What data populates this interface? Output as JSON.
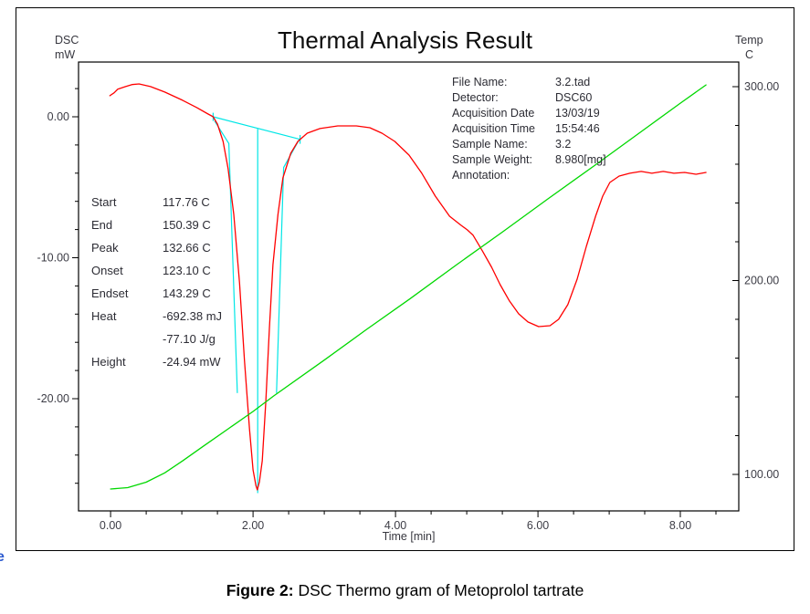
{
  "chart": {
    "title": "Thermal Analysis Result",
    "left_axis_unit_line1": "DSC",
    "left_axis_unit_line2": "mW",
    "right_axis_unit_line1": "Temp",
    "right_axis_unit_line2": "C",
    "x_axis_label": "Time  [min]"
  },
  "info": {
    "rows": [
      {
        "label": "File Name:",
        "value": "3.2.tad"
      },
      {
        "label": "Detector:",
        "value": "DSC60"
      },
      {
        "label": "Acquisition Date",
        "value": "13/03/19"
      },
      {
        "label": "Acquisition Time",
        "value": "15:54:46"
      },
      {
        "label": "Sample Name:",
        "value": "3.2"
      },
      {
        "label": "Sample Weight:",
        "value": "8.980[mg]"
      },
      {
        "label": "Annotation:",
        "value": ""
      }
    ]
  },
  "results": {
    "rows": [
      {
        "label": "Start",
        "value": "117.76 C"
      },
      {
        "label": "End",
        "value": "150.39 C"
      },
      {
        "label": "Peak",
        "value": "132.66 C"
      },
      {
        "label": "Onset",
        "value": "123.10 C"
      },
      {
        "label": "Endset",
        "value": "143.29 C"
      },
      {
        "label": "Heat",
        "value": "-692.38 mJ"
      },
      {
        "label": "",
        "value": "-77.10 J/g"
      },
      {
        "label": "Height",
        "value": "-24.94 mW"
      }
    ]
  },
  "caption": {
    "prefix": "Figure 2:",
    "text": " DSC Thermo gram of Metoprolol tartrate"
  },
  "stray_char": "e",
  "chart_data": {
    "type": "line",
    "title": "Thermal Analysis Result",
    "xlabel": "Time [min]",
    "legend_position": "none",
    "grid": false,
    "x_axis": {
      "lim": [
        -0.45,
        8.82
      ],
      "major_ticks": [
        0,
        2,
        4,
        6,
        8
      ],
      "major_labels": [
        "0.00",
        "2.00",
        "4.00",
        "6.00",
        "8.00"
      ],
      "minor_ticks": [
        0.5,
        1,
        1.5,
        2.5,
        3,
        3.5,
        4.5,
        5,
        5.5,
        6.5,
        7,
        7.5,
        8.5
      ]
    },
    "y_left": {
      "label": "DSC mW",
      "lim": [
        -27.96,
        3.88
      ],
      "major_ticks": [
        0,
        -10,
        -20
      ],
      "major_labels": [
        "0.00",
        "-10.00",
        "-20.00"
      ],
      "minor_ticks": [
        2,
        -2,
        -4,
        -6,
        -8,
        -12,
        -14,
        -16,
        -18,
        -22,
        -24,
        -26
      ]
    },
    "y_right": {
      "label": "Temp C",
      "lim": [
        81.2,
        312.7
      ],
      "major_ticks": [
        300,
        200,
        100
      ],
      "major_labels": [
        "300.00",
        "200.00",
        "100.00"
      ],
      "minor_ticks": [
        280,
        260,
        240,
        220,
        180,
        160,
        140,
        120
      ]
    },
    "series": [
      {
        "name": "dsc-heat-flow-curve",
        "axis": "left",
        "color": "#ff0000",
        "points": [
          [
            -0.01,
            1.49
          ],
          [
            0.05,
            1.7
          ],
          [
            0.1,
            1.95
          ],
          [
            0.21,
            2.14
          ],
          [
            0.3,
            2.28
          ],
          [
            0.4,
            2.33
          ],
          [
            0.56,
            2.14
          ],
          [
            0.76,
            1.75
          ],
          [
            1.01,
            1.17
          ],
          [
            1.21,
            0.65
          ],
          [
            1.37,
            0.19
          ],
          [
            1.44,
            0.0
          ],
          [
            1.5,
            -0.52
          ],
          [
            1.58,
            -1.75
          ],
          [
            1.65,
            -3.69
          ],
          [
            1.73,
            -6.93
          ],
          [
            1.81,
            -11.78
          ],
          [
            1.88,
            -17.28
          ],
          [
            1.95,
            -22.14
          ],
          [
            2.0,
            -25.05
          ],
          [
            2.04,
            -26.15
          ],
          [
            2.06,
            -26.47
          ],
          [
            2.09,
            -25.89
          ],
          [
            2.13,
            -24.4
          ],
          [
            2.18,
            -20.19
          ],
          [
            2.23,
            -15.02
          ],
          [
            2.28,
            -10.49
          ],
          [
            2.35,
            -6.93
          ],
          [
            2.42,
            -4.34
          ],
          [
            2.53,
            -2.59
          ],
          [
            2.63,
            -1.75
          ],
          [
            2.76,
            -1.17
          ],
          [
            2.94,
            -0.84
          ],
          [
            3.19,
            -0.65
          ],
          [
            3.45,
            -0.65
          ],
          [
            3.64,
            -0.78
          ],
          [
            3.81,
            -1.17
          ],
          [
            3.99,
            -1.75
          ],
          [
            4.19,
            -2.72
          ],
          [
            4.37,
            -4.01
          ],
          [
            4.56,
            -5.63
          ],
          [
            4.76,
            -7.06
          ],
          [
            4.92,
            -7.7
          ],
          [
            5.01,
            -8.03
          ],
          [
            5.09,
            -8.41
          ],
          [
            5.22,
            -9.51
          ],
          [
            5.35,
            -10.68
          ],
          [
            5.47,
            -11.91
          ],
          [
            5.6,
            -13.07
          ],
          [
            5.73,
            -13.98
          ],
          [
            5.86,
            -14.56
          ],
          [
            6.01,
            -14.89
          ],
          [
            6.17,
            -14.82
          ],
          [
            6.29,
            -14.37
          ],
          [
            6.42,
            -13.33
          ],
          [
            6.55,
            -11.52
          ],
          [
            6.68,
            -9.19
          ],
          [
            6.81,
            -7.06
          ],
          [
            6.91,
            -5.63
          ],
          [
            7.01,
            -4.66
          ],
          [
            7.14,
            -4.21
          ],
          [
            7.29,
            -4.01
          ],
          [
            7.45,
            -3.88
          ],
          [
            7.6,
            -4.01
          ],
          [
            7.76,
            -3.88
          ],
          [
            7.91,
            -4.01
          ],
          [
            8.06,
            -3.95
          ],
          [
            8.22,
            -4.08
          ],
          [
            8.36,
            -3.95
          ]
        ]
      },
      {
        "name": "temperature-ramp-curve",
        "axis": "right",
        "color": "#00d800",
        "points": [
          [
            0.0,
            92.5
          ],
          [
            0.24,
            93.2
          ],
          [
            0.5,
            96.0
          ],
          [
            0.76,
            100.8
          ],
          [
            1.01,
            107.0
          ],
          [
            1.3,
            114.5
          ],
          [
            1.65,
            123.5
          ],
          [
            2.0,
            132.5
          ],
          [
            2.29,
            140.5
          ],
          [
            3.0,
            159.0
          ],
          [
            3.58,
            174.4
          ],
          [
            4.2,
            190.5
          ],
          [
            4.86,
            208.2
          ],
          [
            5.5,
            225.0
          ],
          [
            6.14,
            242.1
          ],
          [
            6.8,
            259.5
          ],
          [
            7.42,
            276.0
          ],
          [
            8.0,
            291.5
          ],
          [
            8.36,
            300.9
          ]
        ]
      }
    ],
    "peak_construction": {
      "color": "#00e6e6",
      "axis": "left",
      "segments": [
        [
          [
            1.44,
            0.0
          ],
          [
            2.66,
            -1.6
          ]
        ],
        [
          [
            1.44,
            0.28
          ],
          [
            1.44,
            -0.3
          ]
        ],
        [
          [
            2.66,
            -1.3
          ],
          [
            2.66,
            -1.92
          ]
        ],
        [
          [
            2.065,
            -0.85
          ],
          [
            2.065,
            -26.7
          ]
        ],
        [
          [
            1.46,
            -0.3
          ],
          [
            1.66,
            -1.9
          ],
          [
            1.78,
            -19.6
          ]
        ],
        [
          [
            2.65,
            -1.6
          ],
          [
            2.43,
            -3.6
          ],
          [
            2.33,
            -19.6
          ]
        ]
      ]
    }
  }
}
